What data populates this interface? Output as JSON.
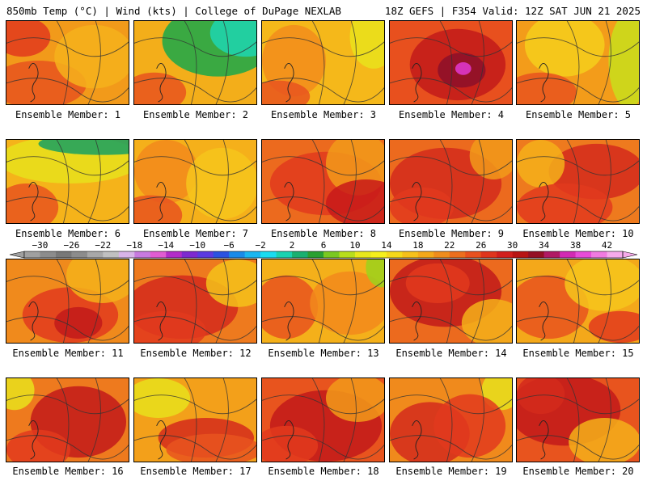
{
  "header": {
    "left_title": "850mb Temp (°C) | Wind (kts) | College of DuPage NEXLAB",
    "right_title": "18Z GEFS | F354 Valid: 12Z SAT JUN 21 2025"
  },
  "members": [
    {
      "label": "Ensemble Member: 1",
      "base": "#f29a1a",
      "blobs": [
        {
          "c": "#e8541e"
        },
        {
          "c": "#f6b21c"
        },
        {
          "c": "#e23a1d"
        }
      ]
    },
    {
      "label": "Ensemble Member: 2",
      "base": "#f3ae1a",
      "blobs": [
        {
          "c": "#19a84a"
        },
        {
          "c": "#1fd6b0"
        },
        {
          "c": "#e8541e"
        }
      ]
    },
    {
      "label": "Ensemble Member: 3",
      "base": "#f5b81a",
      "blobs": [
        {
          "c": "#f28c1c"
        },
        {
          "c": "#e9e21c"
        },
        {
          "c": "#e8541e"
        }
      ]
    },
    {
      "label": "Ensemble Member: 4",
      "base": "#e8501e",
      "blobs": [
        {
          "c": "#c21a1a"
        },
        {
          "c": "#8c0f2a"
        },
        {
          "c": "#e23ad2"
        }
      ]
    },
    {
      "label": "Ensemble Member: 5",
      "base": "#f39c1a",
      "blobs": [
        {
          "c": "#f4cf1c"
        },
        {
          "c": "#c8df1c"
        },
        {
          "c": "#e8541e"
        }
      ]
    },
    {
      "label": "Ensemble Member: 6",
      "base": "#f5b31a",
      "blobs": [
        {
          "c": "#e8e01c"
        },
        {
          "c": "#18a060"
        },
        {
          "c": "#e8541e"
        }
      ]
    },
    {
      "label": "Ensemble Member: 7",
      "base": "#f5b01a",
      "blobs": [
        {
          "c": "#f28a1c"
        },
        {
          "c": "#f6c61c"
        },
        {
          "c": "#e8541e"
        }
      ]
    },
    {
      "label": "Ensemble Member: 8",
      "base": "#ec6a1e",
      "blobs": [
        {
          "c": "#e23a1d"
        },
        {
          "c": "#f29a1a"
        },
        {
          "c": "#c81a1a"
        }
      ]
    },
    {
      "label": "Ensemble Member: 9",
      "base": "#ec6a1e",
      "blobs": [
        {
          "c": "#d42a1c"
        },
        {
          "c": "#f29a1a"
        },
        {
          "c": "#e23a1d"
        }
      ]
    },
    {
      "label": "Ensemble Member: 10",
      "base": "#ee7a1e",
      "blobs": [
        {
          "c": "#d42a1c"
        },
        {
          "c": "#f4b01a"
        },
        {
          "c": "#e23a1d"
        }
      ]
    },
    {
      "label": "Ensemble Member: 11",
      "base": "#f08a1c",
      "blobs": [
        {
          "c": "#e23a1d"
        },
        {
          "c": "#c21a1a"
        },
        {
          "c": "#f4b01a"
        }
      ]
    },
    {
      "label": "Ensemble Member: 12",
      "base": "#ee7a1e",
      "blobs": [
        {
          "c": "#d42a1c"
        },
        {
          "c": "#f4c21a"
        },
        {
          "c": "#e23a1d"
        }
      ]
    },
    {
      "label": "Ensemble Member: 13",
      "base": "#f4b01a",
      "blobs": [
        {
          "c": "#e8541e"
        },
        {
          "c": "#f28a1c"
        },
        {
          "c": "#9bd21c"
        }
      ]
    },
    {
      "label": "Ensemble Member: 14",
      "base": "#ec6a1e",
      "blobs": [
        {
          "c": "#c21a1a"
        },
        {
          "c": "#e23a1d"
        },
        {
          "c": "#f4b01a"
        }
      ]
    },
    {
      "label": "Ensemble Member: 15",
      "base": "#f4a81a",
      "blobs": [
        {
          "c": "#e8541e"
        },
        {
          "c": "#f6c61c"
        },
        {
          "c": "#e23a1d"
        }
      ]
    },
    {
      "label": "Ensemble Member: 16",
      "base": "#ee7a1e",
      "blobs": [
        {
          "c": "#c21a1a"
        },
        {
          "c": "#e9e21c"
        },
        {
          "c": "#e23a1d"
        }
      ]
    },
    {
      "label": "Ensemble Member: 17",
      "base": "#f3a01a",
      "blobs": [
        {
          "c": "#e8e01c"
        },
        {
          "c": "#d42a1c"
        },
        {
          "c": "#e8541e"
        }
      ]
    },
    {
      "label": "Ensemble Member: 18",
      "base": "#e8541e",
      "blobs": [
        {
          "c": "#c21a1a"
        },
        {
          "c": "#f29a1a"
        },
        {
          "c": "#e23a1d"
        }
      ]
    },
    {
      "label": "Ensemble Member: 19",
      "base": "#f08a1c",
      "blobs": [
        {
          "c": "#d42a1c"
        },
        {
          "c": "#e8e01c"
        },
        {
          "c": "#e23a1d"
        }
      ]
    },
    {
      "label": "Ensemble Member: 20",
      "base": "#e8541e",
      "blobs": [
        {
          "c": "#c21a1a"
        },
        {
          "c": "#f4b01a"
        },
        {
          "c": "#d42a1c"
        }
      ]
    }
  ],
  "colorbar": {
    "ticks": [
      "−30",
      "−26",
      "−22",
      "−18",
      "−14",
      "−10",
      "−6",
      "−2",
      "2",
      "6",
      "10",
      "14",
      "18",
      "22",
      "26",
      "30",
      "34",
      "38",
      "42"
    ],
    "colors": [
      "#a0a0a0",
      "#8c8c8c",
      "#787878",
      "#8c8c8c",
      "#a8a8a8",
      "#c0c0c0",
      "#d8b4e8",
      "#c87ae0",
      "#e05cd2",
      "#b22cc8",
      "#7d2ad0",
      "#5b3ae0",
      "#2a52e0",
      "#1a8ae8",
      "#1ab6f0",
      "#1adcf0",
      "#1ad2b0",
      "#1ab070",
      "#2aa030",
      "#7ac820",
      "#b8de1c",
      "#e8e81c",
      "#f6f01c",
      "#f6d81a",
      "#f6c01a",
      "#f4a81a",
      "#f08c1c",
      "#ec6e1e",
      "#e8501e",
      "#e0341c",
      "#d21e1c",
      "#b81414",
      "#941024",
      "#b01a64",
      "#d22ab4",
      "#e84cd8",
      "#f07ae0",
      "#f6aaea"
    ]
  }
}
